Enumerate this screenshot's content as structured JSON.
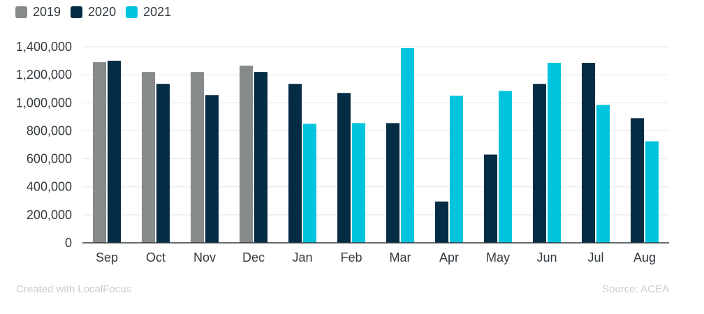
{
  "chart_data": {
    "type": "bar",
    "categories": [
      "Sep",
      "Oct",
      "Nov",
      "Dec",
      "Jan",
      "Feb",
      "Mar",
      "Apr",
      "May",
      "Jun",
      "Jul",
      "Aug"
    ],
    "series": [
      {
        "name": "2019",
        "color": "#878a8a",
        "values": [
          1290000,
          1220000,
          1220000,
          1265000,
          null,
          null,
          null,
          null,
          null,
          null,
          null,
          null
        ]
      },
      {
        "name": "2020",
        "color": "#042c45",
        "values": [
          1300000,
          1135000,
          1055000,
          1220000,
          1135000,
          1070000,
          855000,
          295000,
          630000,
          1135000,
          1285000,
          890000
        ]
      },
      {
        "name": "2021",
        "color": "#00c4de",
        "values": [
          null,
          null,
          null,
          null,
          850000,
          855000,
          1390000,
          1050000,
          1085000,
          1285000,
          985000,
          725000
        ]
      }
    ],
    "yticks": [
      "0",
      "200,000",
      "400,000",
      "600,000",
      "800,000",
      "1,000,000",
      "1,200,000",
      "1,400,000"
    ],
    "ylim": [
      0,
      1400000
    ],
    "grid": true,
    "legend_position": "top-left"
  },
  "footer": {
    "credit": "Created with LocalFocus",
    "source": "Source:  ACEA"
  }
}
